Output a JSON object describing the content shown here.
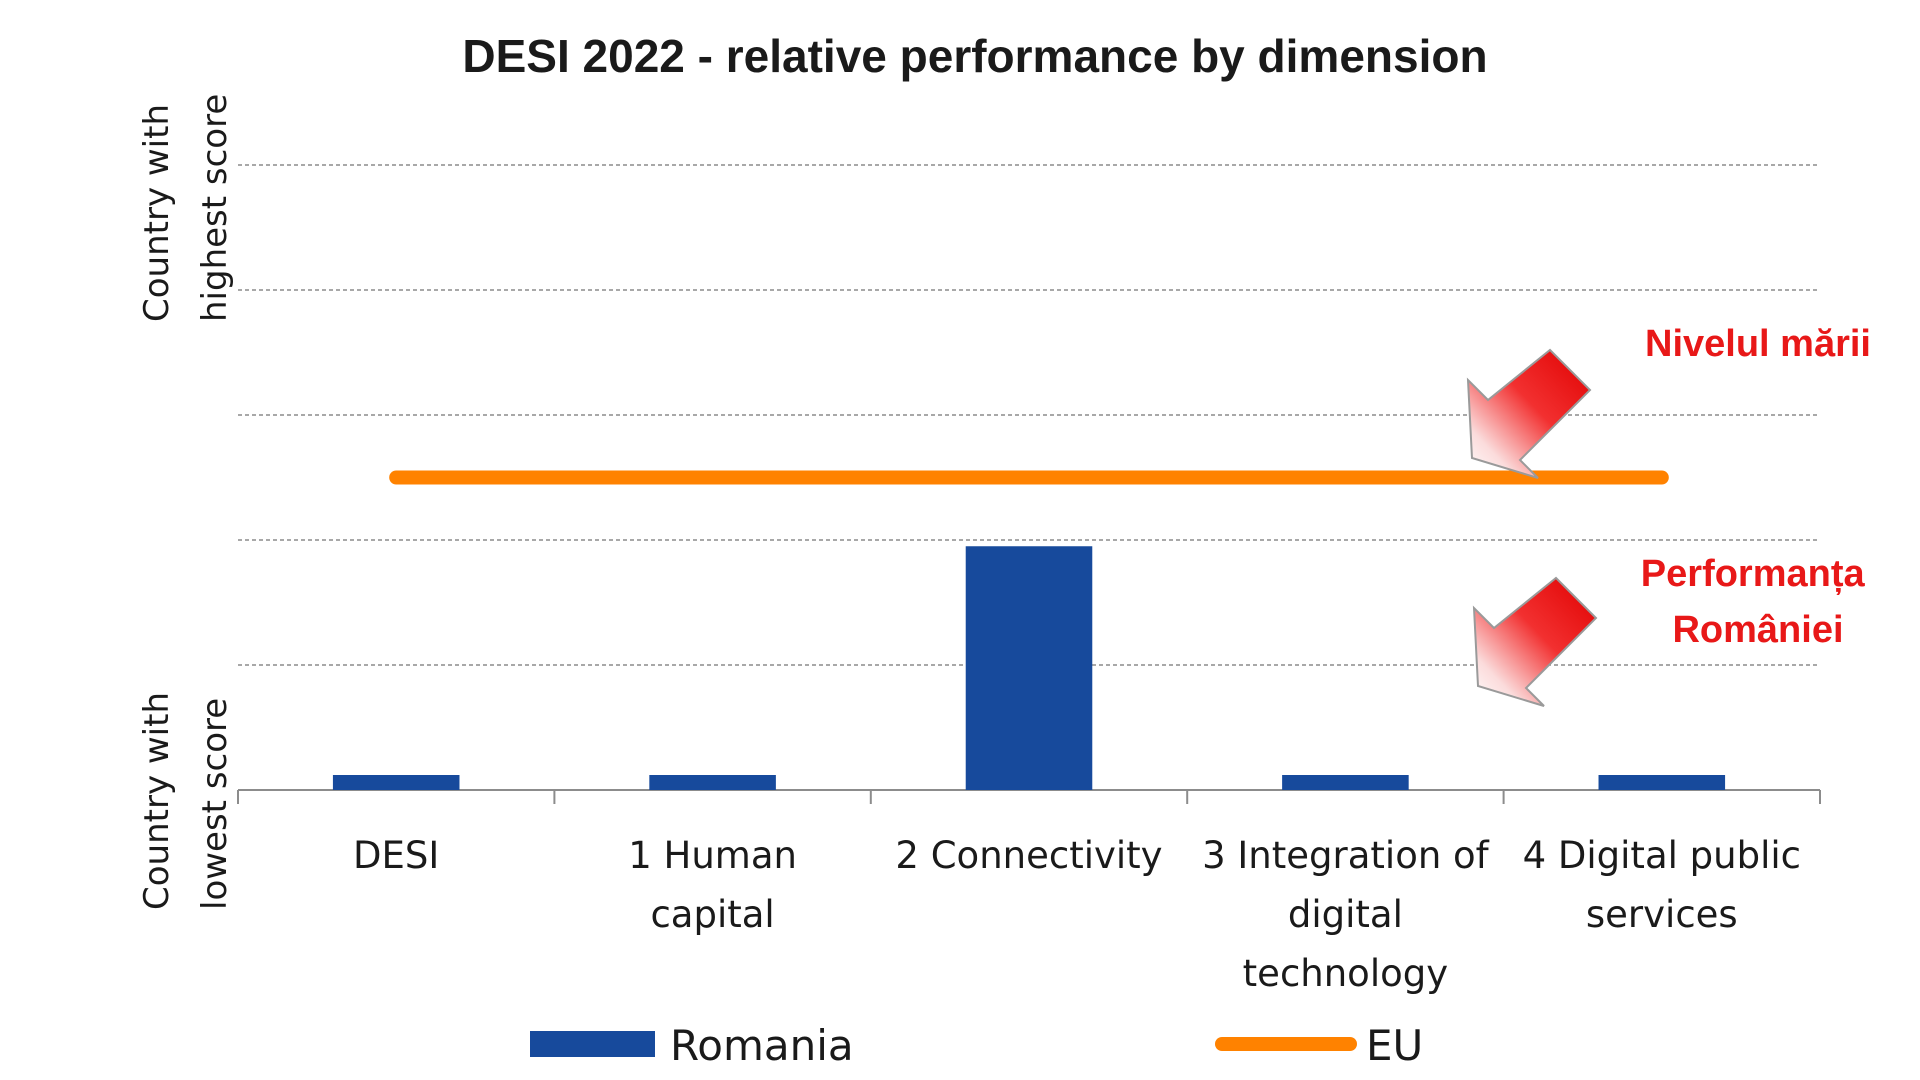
{
  "chart_data": {
    "type": "bar",
    "title": "DESI 2022 -  relative performance by dimension",
    "y_axis_labels": {
      "top": [
        "Country with",
        "highest score"
      ],
      "bottom": [
        "Country with",
        "lowest score"
      ]
    },
    "categories": [
      "DESI",
      "1 Human capital",
      "2 Connectivity",
      "3 Integration of digital technology",
      "4 Digital public services"
    ],
    "category_lines": [
      [
        "DESI"
      ],
      [
        "1 Human",
        "capital"
      ],
      [
        "2 Connectivity"
      ],
      [
        "3 Integration of",
        "digital",
        "technology"
      ],
      [
        "4 Digital public",
        "services"
      ]
    ],
    "ylim": [
      0,
      5
    ],
    "grid": true,
    "series": [
      {
        "name": "Romania",
        "type": "bar",
        "color": "#174a9c",
        "values": [
          0.12,
          0.12,
          1.95,
          0.12,
          0.12
        ]
      },
      {
        "name": "EU",
        "type": "line",
        "color": "#ff8200",
        "value": 2.5
      }
    ],
    "legend": {
      "position": "bottom",
      "items": [
        "Romania",
        "EU"
      ]
    },
    "annotations": [
      {
        "lines": [
          "Nivelul mării"
        ],
        "color": "#e81818",
        "points_to": "EU"
      },
      {
        "lines": [
          "Performanța",
          "României"
        ],
        "color": "#e81818",
        "points_to": "Romania"
      }
    ]
  }
}
